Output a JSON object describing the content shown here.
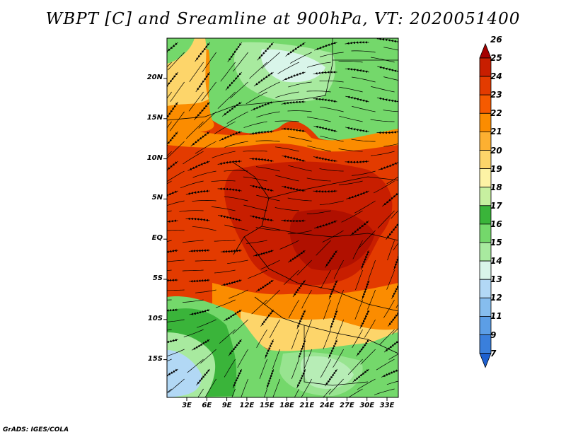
{
  "title": "WBPT [C] and Sreamline at 900hPa, VT: 2020051400",
  "credit": "GrADS: IGES/COLA",
  "lat_labels": [
    "20N",
    "15N",
    "10N",
    "5N",
    "EQ",
    "5S",
    "10S",
    "15S"
  ],
  "lon_labels": [
    "3E",
    "6E",
    "9E",
    "12E",
    "15E",
    "18E",
    "21E",
    "24E",
    "27E",
    "30E",
    "33E"
  ],
  "colorbar": {
    "levels": [
      "26",
      "25",
      "24",
      "23",
      "22",
      "21",
      "20",
      "19",
      "18",
      "17",
      "16",
      "15",
      "14",
      "13",
      "12",
      "11",
      "9",
      "7"
    ],
    "colors": [
      "#a50000",
      "#c81e00",
      "#e33b00",
      "#f55a00",
      "#fb8c00",
      "#fdb031",
      "#fdd56a",
      "#fdf3a5",
      "#c7f0a0",
      "#3ab43a",
      "#74d86b",
      "#a8ea9f",
      "#d9f5ea",
      "#b2d8f5",
      "#86bdee",
      "#5c9ee6",
      "#3a7fdc",
      "#1d60d0"
    ]
  },
  "map_colors": {
    "hot_dark": "#c81e00",
    "hot": "#e33b00",
    "orange": "#fb8c00",
    "yellow": "#fdd56a",
    "green": "#74d86b",
    "green_dark": "#3ab43a",
    "green_light": "#a8ea9f",
    "cyan": "#d9f5ea",
    "blue": "#b2d8f5"
  }
}
